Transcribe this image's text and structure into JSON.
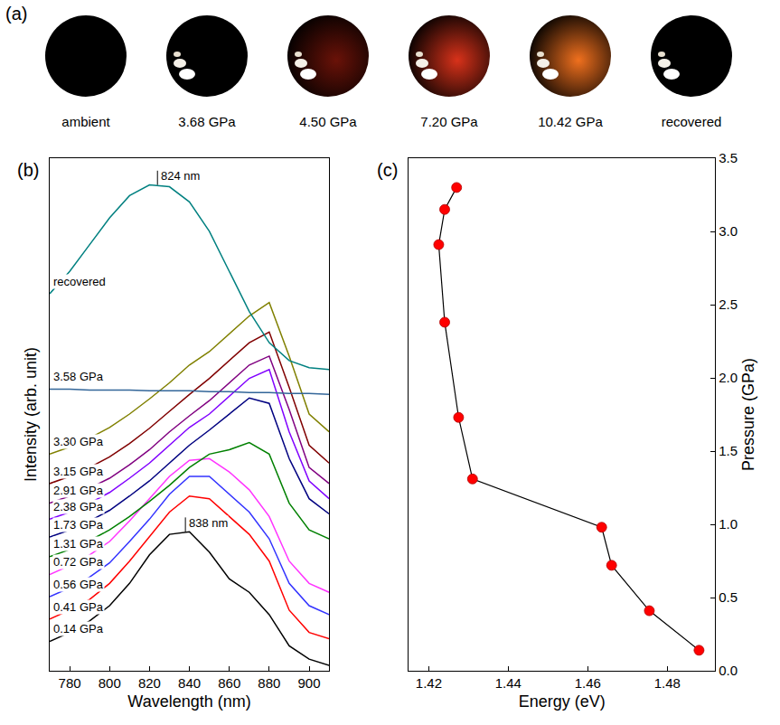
{
  "panel_a": {
    "panel_label": "(a)",
    "photos": [
      {
        "caption": "ambient",
        "color": "#000000"
      },
      {
        "caption": "3.68 GPa",
        "color": "#000000"
      },
      {
        "caption": "4.50 GPa",
        "color": "#6a1208"
      },
      {
        "caption": "7.20 GPa",
        "color": "#d8321a"
      },
      {
        "caption": "10.42 GPa",
        "color": "#f0701e"
      },
      {
        "caption": "recovered",
        "color": "#000000"
      }
    ]
  },
  "chart_data": [
    {
      "type": "line",
      "panel_label": "(b)",
      "x_label": "Wavelength (nm)",
      "y_label": "Intensity (arb. unit)",
      "x": [
        770,
        780,
        790,
        800,
        810,
        820,
        830,
        840,
        850,
        860,
        870,
        880,
        890,
        900,
        910
      ],
      "series": [
        {
          "name": "0.14 GPa",
          "color": "#000000",
          "values": [
            33,
            43,
            56,
            73,
            98,
            130,
            153,
            156,
            133,
            103,
            88,
            63,
            28,
            13,
            6
          ]
        },
        {
          "name": "0.41 GPa",
          "color": "#ff0000",
          "values": [
            58,
            68,
            80,
            98,
            123,
            150,
            178,
            196,
            193,
            173,
            153,
            123,
            68,
            43,
            36
          ]
        },
        {
          "name": "0.56 GPa",
          "color": "#3333ff",
          "values": [
            83,
            93,
            105,
            121,
            145,
            170,
            198,
            218,
            218,
            198,
            178,
            148,
            98,
            73,
            63
          ]
        },
        {
          "name": "0.72 GPa",
          "color": "#ff33ff",
          "values": [
            108,
            118,
            130,
            145,
            168,
            193,
            218,
            236,
            238,
            223,
            203,
            173,
            123,
            98,
            88
          ]
        },
        {
          "name": "1.31 GPa",
          "color": "#008000",
          "values": [
            128,
            136,
            146,
            158,
            173,
            190,
            208,
            228,
            243,
            248,
            256,
            243,
            188,
            158,
            148
          ]
        },
        {
          "name": "1.73 GPa",
          "color": "#000080",
          "values": [
            150,
            158,
            168,
            180,
            196,
            213,
            233,
            253,
            270,
            288,
            306,
            300,
            238,
            193,
            176
          ]
        },
        {
          "name": "2.38 GPa",
          "color": "#8000ff",
          "values": [
            170,
            178,
            188,
            200,
            216,
            233,
            253,
            273,
            288,
            308,
            328,
            338,
            268,
            213,
            193
          ]
        },
        {
          "name": "2.91 GPa",
          "color": "#800080",
          "values": [
            188,
            196,
            205,
            216,
            231,
            248,
            268,
            286,
            303,
            323,
            343,
            353,
            293,
            228,
            210
          ]
        },
        {
          "name": "3.15 GPa",
          "color": "#800000",
          "values": [
            210,
            218,
            228,
            240,
            255,
            272,
            291,
            310,
            328,
            348,
            368,
            380,
            318,
            253,
            233
          ]
        },
        {
          "name": "3.30 GPa",
          "color": "#808000",
          "values": [
            243,
            251,
            261,
            273,
            288,
            305,
            323,
            343,
            358,
            378,
            398,
            413,
            353,
            288,
            268
          ]
        },
        {
          "name": "3.58 GPa",
          "color": "#336699",
          "values": [
            316,
            316,
            315,
            315,
            315,
            314,
            314,
            314,
            313,
            313,
            312,
            312,
            311,
            311,
            310
          ]
        },
        {
          "name": "recovered",
          "color": "#008080",
          "values": [
            423,
            448,
            478,
            508,
            533,
            545,
            543,
            526,
            493,
            448,
            403,
            368,
            348,
            340,
            338
          ]
        }
      ],
      "annotations": [
        {
          "text": "838 nm",
          "x": 838,
          "y": 156
        },
        {
          "text": "824 nm",
          "x": 824,
          "y": 545
        }
      ],
      "xlim": [
        770,
        910
      ],
      "xticks": [
        780,
        800,
        820,
        840,
        860,
        880,
        900
      ],
      "ylim": [
        0,
        575
      ],
      "yticks": [],
      "tick_labels": "x",
      "grid": false
    },
    {
      "type": "scatter",
      "panel_label": "(c)",
      "x_label": "Energy (eV)",
      "y_label": "Pressure (GPa)",
      "x": [
        1.488,
        1.4755,
        1.466,
        1.4635,
        1.431,
        1.4275,
        1.424,
        1.4225,
        1.424,
        1.427
      ],
      "series": [
        {
          "color": "#ff0000",
          "marker": "circle",
          "line_style": "solid",
          "values": [
            0.14,
            0.41,
            0.72,
            0.98,
            1.31,
            1.73,
            2.38,
            2.91,
            3.15,
            3.3
          ]
        }
      ],
      "xlim": [
        1.415,
        1.492
      ],
      "xticks": [
        1.42,
        1.44,
        1.46,
        1.48
      ],
      "ylim": [
        0,
        3.5
      ],
      "yticks": [
        {
          "value": 0,
          "label": "0.0"
        },
        0.5,
        {
          "value": 1,
          "label": "1.0"
        },
        1.5,
        {
          "value": 2,
          "label": "2.0"
        },
        2.5,
        {
          "value": 3,
          "label": "3.0"
        },
        3.5
      ],
      "grid": false
    }
  ]
}
